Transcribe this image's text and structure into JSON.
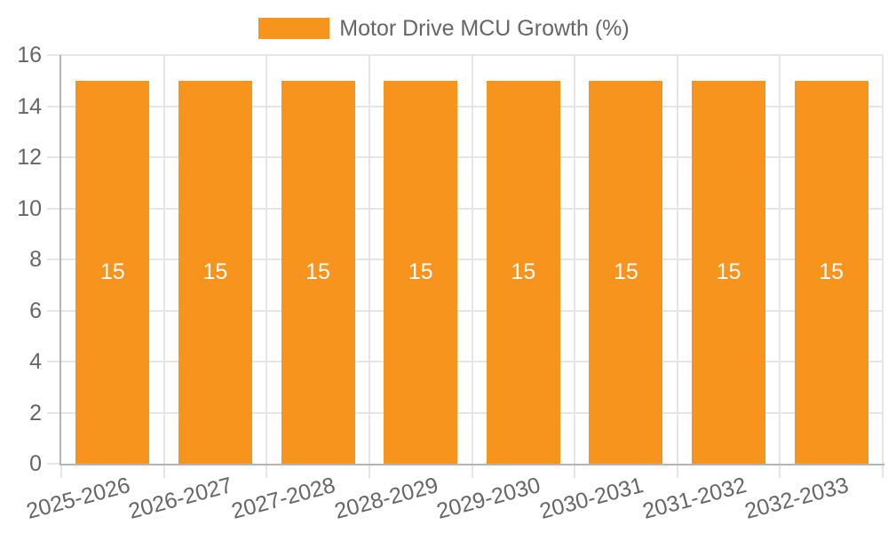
{
  "chart_data": {
    "type": "bar",
    "title": "",
    "categories": [
      "2025-2026",
      "2026-2027",
      "2027-2028",
      "2028-2029",
      "2029-2030",
      "2030-2031",
      "2031-2032",
      "2032-2033"
    ],
    "series": [
      {
        "name": "Motor Drive MCU Growth (%)",
        "values": [
          15,
          15,
          15,
          15,
          15,
          15,
          15,
          15
        ]
      }
    ],
    "bar_value_labels": [
      "15",
      "15",
      "15",
      "15",
      "15",
      "15",
      "15",
      "15"
    ],
    "xlabel": "",
    "ylabel": "",
    "ylim": [
      0,
      16
    ],
    "yticks": [
      0,
      2,
      4,
      6,
      8,
      10,
      12,
      14,
      16
    ],
    "yticklabels": [
      "0",
      "2",
      "4",
      "6",
      "8",
      "10",
      "12",
      "14",
      "16"
    ],
    "x_label_rotation_deg": -15,
    "grid": "on",
    "legend_position": "top-center",
    "colors": {
      "bar": "#f7941e",
      "bar_label_text": "#ffffff",
      "grid_line": "#e5e5e5",
      "axis_line": "#b4b4b4",
      "tick_text": "#666666",
      "background": "#ffffff"
    }
  }
}
